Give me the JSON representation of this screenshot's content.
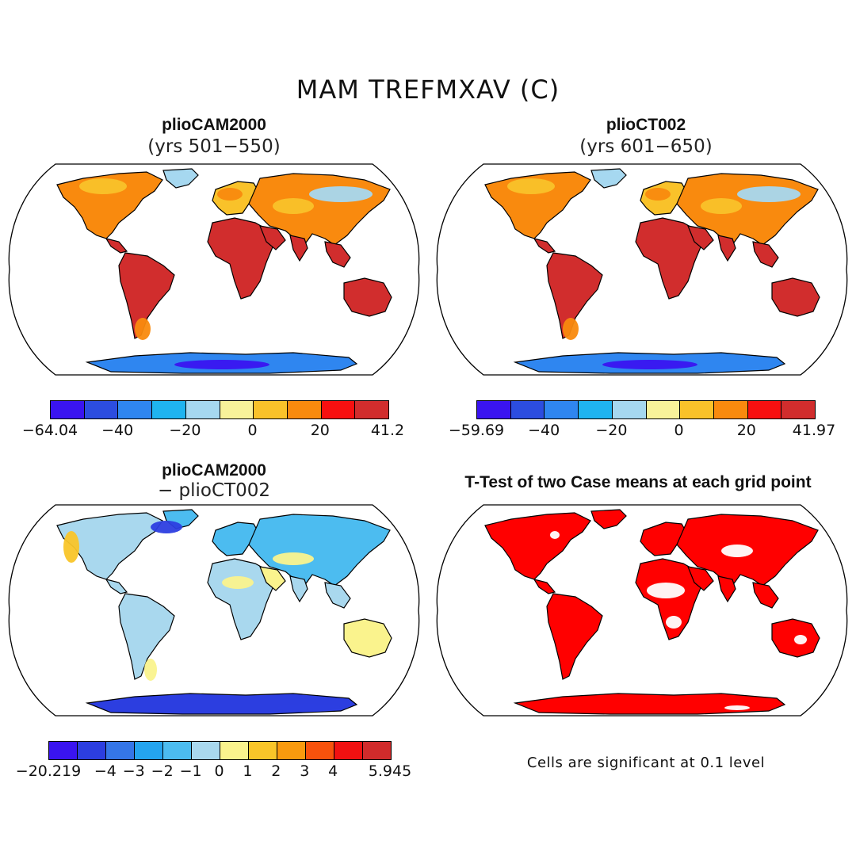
{
  "figure": {
    "title": "MAM TREFMXAV (C)",
    "note": "Cells are significant at 0.1 level"
  },
  "panels": [
    {
      "id": "case1",
      "title": "plioCAM2000",
      "subtitle": "(yrs 501−550)",
      "colorbar": {
        "colors": [
          "#3a14f0",
          "#2c4de0",
          "#2f86f0",
          "#1fb4f0",
          "#a6d8f0",
          "#f8f29a",
          "#f9c22a",
          "#f98a0e",
          "#f71010",
          "#d12d2d"
        ],
        "labels": [
          "−64.04",
          "−40",
          "−20",
          "0",
          "20",
          "41.2"
        ]
      }
    },
    {
      "id": "case2",
      "title": "plioCT002",
      "subtitle": "(yrs 601−650)",
      "colorbar": {
        "colors": [
          "#3a14f0",
          "#2c4de0",
          "#2f86f0",
          "#1fb4f0",
          "#a6d8f0",
          "#f8f29a",
          "#f9c22a",
          "#f98a0e",
          "#f71010",
          "#d12d2d"
        ],
        "labels": [
          "−59.69",
          "−40",
          "−20",
          "0",
          "20",
          "41.97"
        ]
      }
    },
    {
      "id": "diff",
      "title": "plioCAM2000",
      "subtitle": "− plioCT002",
      "colorbar": {
        "colors": [
          "#3a14f0",
          "#2c3ee0",
          "#3576e8",
          "#24a4ef",
          "#4cbcf0",
          "#a9d8ee",
          "#faf38d",
          "#f9c529",
          "#f99a0e",
          "#f8520c",
          "#f11111",
          "#d12b2b"
        ],
        "labels": [
          "−20.219",
          "−4",
          "−3",
          "−2",
          "−1",
          "0",
          "1",
          "2",
          "3",
          "4",
          "5.945"
        ]
      }
    },
    {
      "id": "ttest",
      "title": "T-Test of two Case means at each grid point",
      "subtitle": ""
    }
  ],
  "palette": {
    "hot": "#d12d2d",
    "red": "#f71010",
    "orange": "#f98a0e",
    "yellow": "#f9c22a",
    "light": "#f8f29a",
    "cyan": "#a6d8f0",
    "blue": "#2f86f0",
    "deep": "#3a14f0"
  }
}
